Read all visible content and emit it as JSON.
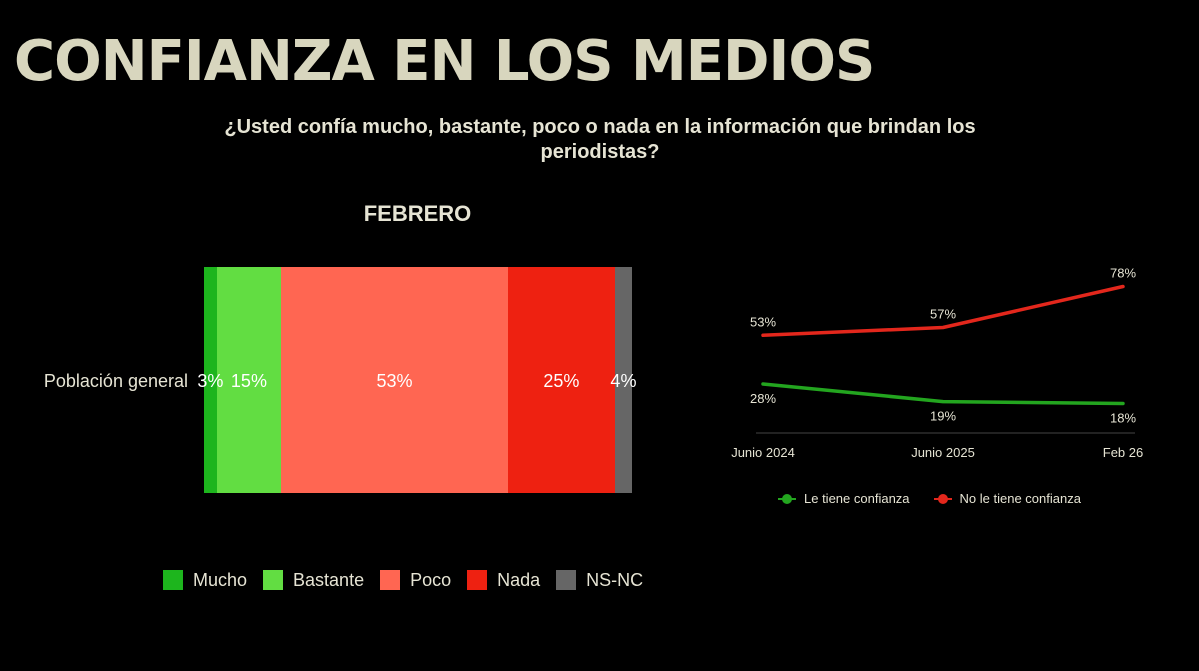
{
  "title": "CONFIANZA EN LOS MEDIOS",
  "subtitle": "¿Usted confía mucho, bastante, poco o nada en la información que brindan los periodistas?",
  "chart_data": [
    {
      "type": "bar",
      "orientation": "horizontal",
      "stacked": true,
      "title": "FEBRERO",
      "categories": [
        "Población general"
      ],
      "series": [
        {
          "name": "Mucho",
          "values": [
            3
          ],
          "label": "3%",
          "color": "#1db51d"
        },
        {
          "name": "Bastante",
          "values": [
            15
          ],
          "label": "15%",
          "color": "#62dd42"
        },
        {
          "name": "Poco",
          "values": [
            53
          ],
          "label": "53%",
          "color": "#ff6652"
        },
        {
          "name": "Nada",
          "values": [
            25
          ],
          "label": "25%",
          "color": "#ee2111"
        },
        {
          "name": "NS-NC",
          "values": [
            4
          ],
          "label": "4%",
          "color": "#666666"
        }
      ],
      "legend_position": "bottom"
    },
    {
      "type": "line",
      "x": [
        "Junio 2024",
        "Junio 2025",
        "Feb 26"
      ],
      "series": [
        {
          "name": "Le tiene confianza",
          "values": [
            28,
            19,
            18
          ],
          "labels": [
            "28%",
            "19%",
            "18%"
          ],
          "color": "#23a51f"
        },
        {
          "name": "No le tiene confianza",
          "values": [
            53,
            57,
            78
          ],
          "labels": [
            "53%",
            "57%",
            "78%"
          ],
          "color": "#e3271c"
        }
      ],
      "legend_position": "bottom"
    }
  ]
}
